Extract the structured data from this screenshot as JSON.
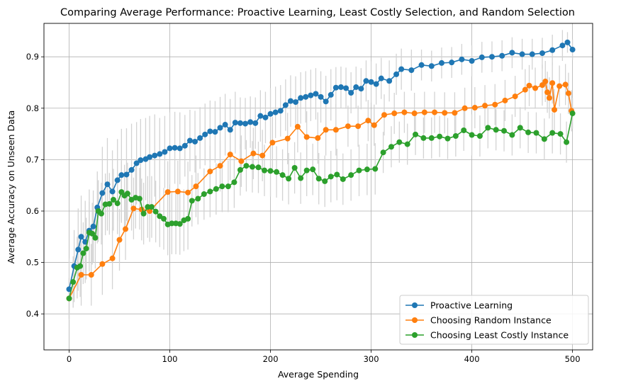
{
  "chart_data": {
    "type": "line",
    "title": "Comparing Average Performance: Proactive Learning, Least Costly Selection, and Random Selection",
    "xlabel": "Average Spending",
    "ylabel": "Average Accuracy on Unseen Data",
    "xlim": [
      -25,
      520
    ],
    "ylim": [
      0.33,
      0.965
    ],
    "xticks": [
      "0",
      "100",
      "200",
      "300",
      "400",
      "500"
    ],
    "yticks": [
      "0.4",
      "0.5",
      "0.6",
      "0.7",
      "0.8",
      "0.9"
    ],
    "grid": true,
    "legend_position": "lower right",
    "error_bar_color": "#d3d3d3",
    "series": [
      {
        "name": "Proactive Learning",
        "color": "#1f77b4",
        "x": [
          0,
          5,
          9,
          12,
          16,
          20,
          24,
          28,
          33,
          38,
          43,
          48,
          52,
          57,
          62,
          67,
          71,
          76,
          80,
          85,
          90,
          95,
          100,
          105,
          110,
          115,
          120,
          125,
          130,
          135,
          140,
          145,
          150,
          155,
          160,
          165,
          170,
          175,
          180,
          185,
          190,
          195,
          200,
          205,
          210,
          215,
          220,
          225,
          230,
          235,
          240,
          245,
          250,
          255,
          260,
          265,
          270,
          275,
          280,
          285,
          290,
          295,
          300,
          305,
          310,
          318,
          325,
          330,
          340,
          350,
          360,
          370,
          380,
          390,
          400,
          410,
          420,
          430,
          440,
          450,
          460,
          470,
          480,
          490,
          495,
          500
        ],
        "y": [
          0.448,
          0.493,
          0.525,
          0.55,
          0.54,
          0.562,
          0.57,
          0.607,
          0.635,
          0.652,
          0.638,
          0.66,
          0.67,
          0.671,
          0.68,
          0.693,
          0.699,
          0.701,
          0.705,
          0.708,
          0.711,
          0.715,
          0.722,
          0.723,
          0.722,
          0.727,
          0.737,
          0.735,
          0.742,
          0.749,
          0.755,
          0.754,
          0.762,
          0.768,
          0.758,
          0.772,
          0.771,
          0.77,
          0.773,
          0.771,
          0.785,
          0.782,
          0.789,
          0.792,
          0.795,
          0.806,
          0.814,
          0.812,
          0.82,
          0.822,
          0.825,
          0.828,
          0.822,
          0.813,
          0.826,
          0.84,
          0.841,
          0.839,
          0.83,
          0.841,
          0.838,
          0.853,
          0.851,
          0.847,
          0.858,
          0.853,
          0.866,
          0.876,
          0.874,
          0.884,
          0.882,
          0.888,
          0.889,
          0.895,
          0.892,
          0.899,
          0.9,
          0.902,
          0.908,
          0.905,
          0.905,
          0.907,
          0.913,
          0.922,
          0.928,
          0.914
        ],
        "err": [
          0.06,
          0.07,
          0.08,
          0.08,
          0.08,
          0.08,
          0.07,
          0.07,
          0.09,
          0.09,
          0.08,
          0.08,
          0.09,
          0.09,
          0.09,
          0.08,
          0.08,
          0.08,
          0.08,
          0.08,
          0.07,
          0.07,
          0.07,
          0.07,
          0.07,
          0.06,
          0.06,
          0.06,
          0.06,
          0.06,
          0.06,
          0.06,
          0.06,
          0.06,
          0.06,
          0.06,
          0.05,
          0.05,
          0.05,
          0.05,
          0.05,
          0.05,
          0.05,
          0.05,
          0.05,
          0.05,
          0.05,
          0.05,
          0.05,
          0.05,
          0.05,
          0.05,
          0.05,
          0.05,
          0.05,
          0.04,
          0.04,
          0.04,
          0.04,
          0.04,
          0.04,
          0.04,
          0.04,
          0.04,
          0.04,
          0.04,
          0.04,
          0.04,
          0.04,
          0.03,
          0.03,
          0.03,
          0.03,
          0.03,
          0.03,
          0.03,
          0.03,
          0.03,
          0.03,
          0.03,
          0.03,
          0.03,
          0.03,
          0.03,
          0.02,
          0.02
        ]
      },
      {
        "name": "Choosing Random Instance",
        "color": "#ff7f0e",
        "x": [
          0,
          12,
          22,
          33,
          43,
          50,
          56,
          64,
          72,
          80,
          98,
          108,
          118,
          126,
          140,
          150,
          160,
          171,
          183,
          192,
          202,
          217,
          227,
          236,
          247,
          255,
          265,
          277,
          287,
          297,
          303,
          313,
          323,
          333,
          343,
          353,
          363,
          373,
          383,
          393,
          403,
          413,
          423,
          433,
          443,
          453,
          457,
          463,
          470,
          473,
          475,
          477,
          480,
          482,
          487,
          493,
          496,
          499
        ],
        "y": [
          0.43,
          0.476,
          0.476,
          0.497,
          0.508,
          0.544,
          0.565,
          0.605,
          0.603,
          0.6,
          0.637,
          0.638,
          0.636,
          0.648,
          0.677,
          0.688,
          0.71,
          0.697,
          0.712,
          0.708,
          0.733,
          0.741,
          0.764,
          0.744,
          0.742,
          0.758,
          0.758,
          0.765,
          0.765,
          0.776,
          0.767,
          0.787,
          0.79,
          0.792,
          0.79,
          0.792,
          0.792,
          0.791,
          0.791,
          0.8,
          0.801,
          0.805,
          0.807,
          0.815,
          0.823,
          0.836,
          0.844,
          0.839,
          0.845,
          0.852,
          0.831,
          0.82,
          0.849,
          0.797,
          0.843,
          0.846,
          0.829,
          0.795
        ],
        "err": [
          0.04,
          0.06,
          0.06,
          0.06,
          0.06,
          0.06,
          0.06,
          0.06,
          0.06,
          0.06,
          0.06,
          0.06,
          0.06,
          0.06,
          0.05,
          0.05,
          0.05,
          0.05,
          0.05,
          0.05,
          0.05,
          0.05,
          0.05,
          0.05,
          0.05,
          0.05,
          0.05,
          0.04,
          0.04,
          0.04,
          0.04,
          0.04,
          0.04,
          0.04,
          0.04,
          0.04,
          0.04,
          0.04,
          0.04,
          0.04,
          0.04,
          0.04,
          0.04,
          0.04,
          0.04,
          0.04,
          0.04,
          0.04,
          0.04,
          0.04,
          0.04,
          0.04,
          0.04,
          0.04,
          0.04,
          0.04,
          0.04,
          0.04
        ]
      },
      {
        "name": "Choosing Least Costly Instance",
        "color": "#2ca02c",
        "x": [
          0,
          4,
          8,
          11,
          14,
          17,
          20,
          23,
          26,
          29,
          32,
          36,
          40,
          44,
          48,
          52,
          55,
          58,
          62,
          66,
          70,
          74,
          78,
          82,
          86,
          90,
          94,
          98,
          102,
          106,
          110,
          114,
          118,
          122,
          128,
          134,
          140,
          146,
          152,
          158,
          164,
          170,
          176,
          182,
          188,
          194,
          200,
          206,
          212,
          218,
          224,
          230,
          236,
          242,
          248,
          254,
          260,
          266,
          272,
          280,
          288,
          296,
          304,
          312,
          320,
          328,
          336,
          344,
          352,
          360,
          368,
          376,
          384,
          392,
          400,
          408,
          416,
          424,
          432,
          440,
          448,
          456,
          464,
          472,
          480,
          488,
          494,
          500
        ],
        "y": [
          0.43,
          0.462,
          0.49,
          0.493,
          0.518,
          0.527,
          0.558,
          0.556,
          0.548,
          0.6,
          0.595,
          0.613,
          0.614,
          0.622,
          0.615,
          0.637,
          0.63,
          0.634,
          0.622,
          0.626,
          0.624,
          0.595,
          0.608,
          0.608,
          0.599,
          0.59,
          0.585,
          0.574,
          0.576,
          0.576,
          0.575,
          0.582,
          0.585,
          0.62,
          0.624,
          0.633,
          0.638,
          0.643,
          0.648,
          0.648,
          0.656,
          0.68,
          0.688,
          0.686,
          0.685,
          0.679,
          0.678,
          0.676,
          0.67,
          0.663,
          0.684,
          0.664,
          0.679,
          0.681,
          0.663,
          0.658,
          0.667,
          0.671,
          0.662,
          0.67,
          0.679,
          0.681,
          0.682,
          0.714,
          0.725,
          0.734,
          0.73,
          0.749,
          0.742,
          0.742,
          0.745,
          0.741,
          0.746,
          0.757,
          0.748,
          0.746,
          0.762,
          0.758,
          0.756,
          0.748,
          0.762,
          0.753,
          0.752,
          0.74,
          0.752,
          0.75,
          0.734,
          0.79
        ],
        "err": [
          0.04,
          0.05,
          0.06,
          0.06,
          0.06,
          0.06,
          0.06,
          0.06,
          0.06,
          0.06,
          0.06,
          0.06,
          0.06,
          0.06,
          0.06,
          0.06,
          0.06,
          0.06,
          0.06,
          0.06,
          0.06,
          0.06,
          0.06,
          0.06,
          0.06,
          0.06,
          0.06,
          0.06,
          0.06,
          0.06,
          0.06,
          0.06,
          0.06,
          0.05,
          0.05,
          0.05,
          0.05,
          0.05,
          0.05,
          0.05,
          0.05,
          0.05,
          0.05,
          0.05,
          0.05,
          0.05,
          0.05,
          0.05,
          0.05,
          0.05,
          0.05,
          0.05,
          0.05,
          0.05,
          0.05,
          0.05,
          0.05,
          0.05,
          0.05,
          0.05,
          0.05,
          0.05,
          0.05,
          0.04,
          0.04,
          0.04,
          0.04,
          0.04,
          0.04,
          0.04,
          0.04,
          0.04,
          0.04,
          0.04,
          0.04,
          0.04,
          0.04,
          0.04,
          0.04,
          0.04,
          0.04,
          0.04,
          0.04,
          0.04,
          0.04,
          0.04,
          0.04,
          0.03
        ]
      }
    ]
  }
}
